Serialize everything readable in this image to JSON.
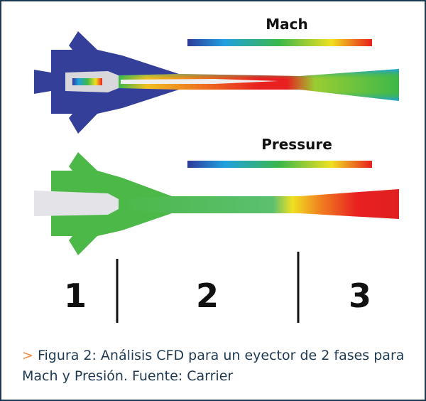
{
  "figure": {
    "mach_panel": {
      "title": "Mach",
      "colorbar": [
        "#2e3a9a",
        "#1fa0e0",
        "#3cb84a",
        "#f0e020",
        "#e81e1e"
      ]
    },
    "pressure_panel": {
      "title": "Pressure",
      "colorbar": [
        "#2e3a9a",
        "#1fa0e0",
        "#3cb84a",
        "#f0e020",
        "#e81e1e"
      ]
    },
    "sections": [
      "1",
      "2",
      "3"
    ]
  },
  "caption": {
    "marker": ">",
    "text": "Figura 2: Análisis CFD para un eyector de 2 fases para Mach y Presión. Fuente: Carrier"
  },
  "colors": {
    "border": "#1e3a52",
    "caption_text": "#1e3a52",
    "marker": "#f08a3c",
    "mach_body": "#343f99",
    "pressure_body": "#4cb848"
  }
}
